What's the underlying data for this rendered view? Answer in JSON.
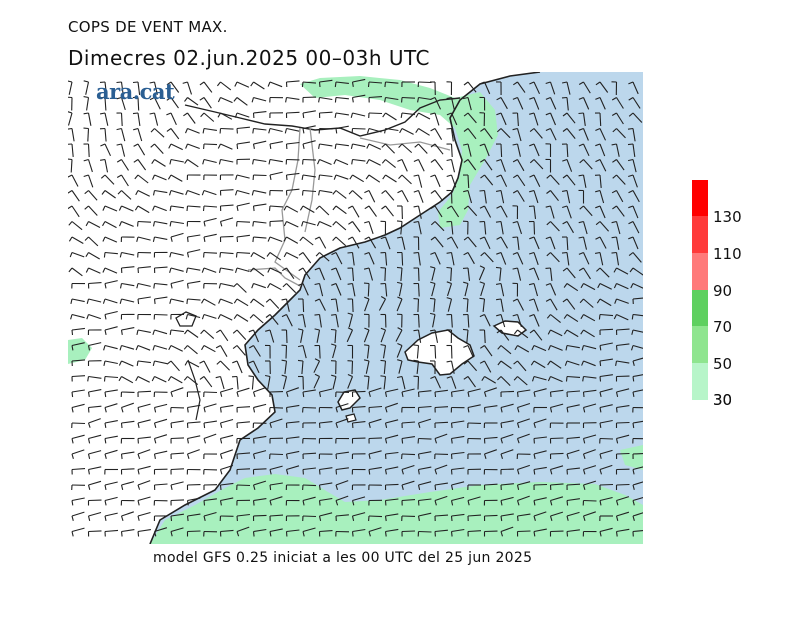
{
  "header": {
    "subtitle": "COPS DE VENT MAX.",
    "title": "Dimecres  02.jun.2025 00–03h UTC"
  },
  "logo": {
    "text": "ara.cat"
  },
  "footer": {
    "model_text": "model GFS 0.25 iniciat a les 00 UTC del 25 jun 2025"
  },
  "legend": {
    "bands": [
      {
        "label": "",
        "color": "#ff0000"
      },
      {
        "label": "130",
        "color": "#ff3a3a"
      },
      {
        "label": "110",
        "color": "#ff7a7a"
      },
      {
        "label": "90",
        "color": "#5fd060"
      },
      {
        "label": "70",
        "color": "#8fe58f"
      },
      {
        "label": "50",
        "color": "#b7f5c9"
      },
      {
        "label": "30",
        "color": ""
      }
    ]
  },
  "map": {
    "sea_color": "#bcd7ec",
    "wind_zone_color": "#a8f0be",
    "land_color": "#ffffff",
    "barb_color": "#222222"
  }
}
